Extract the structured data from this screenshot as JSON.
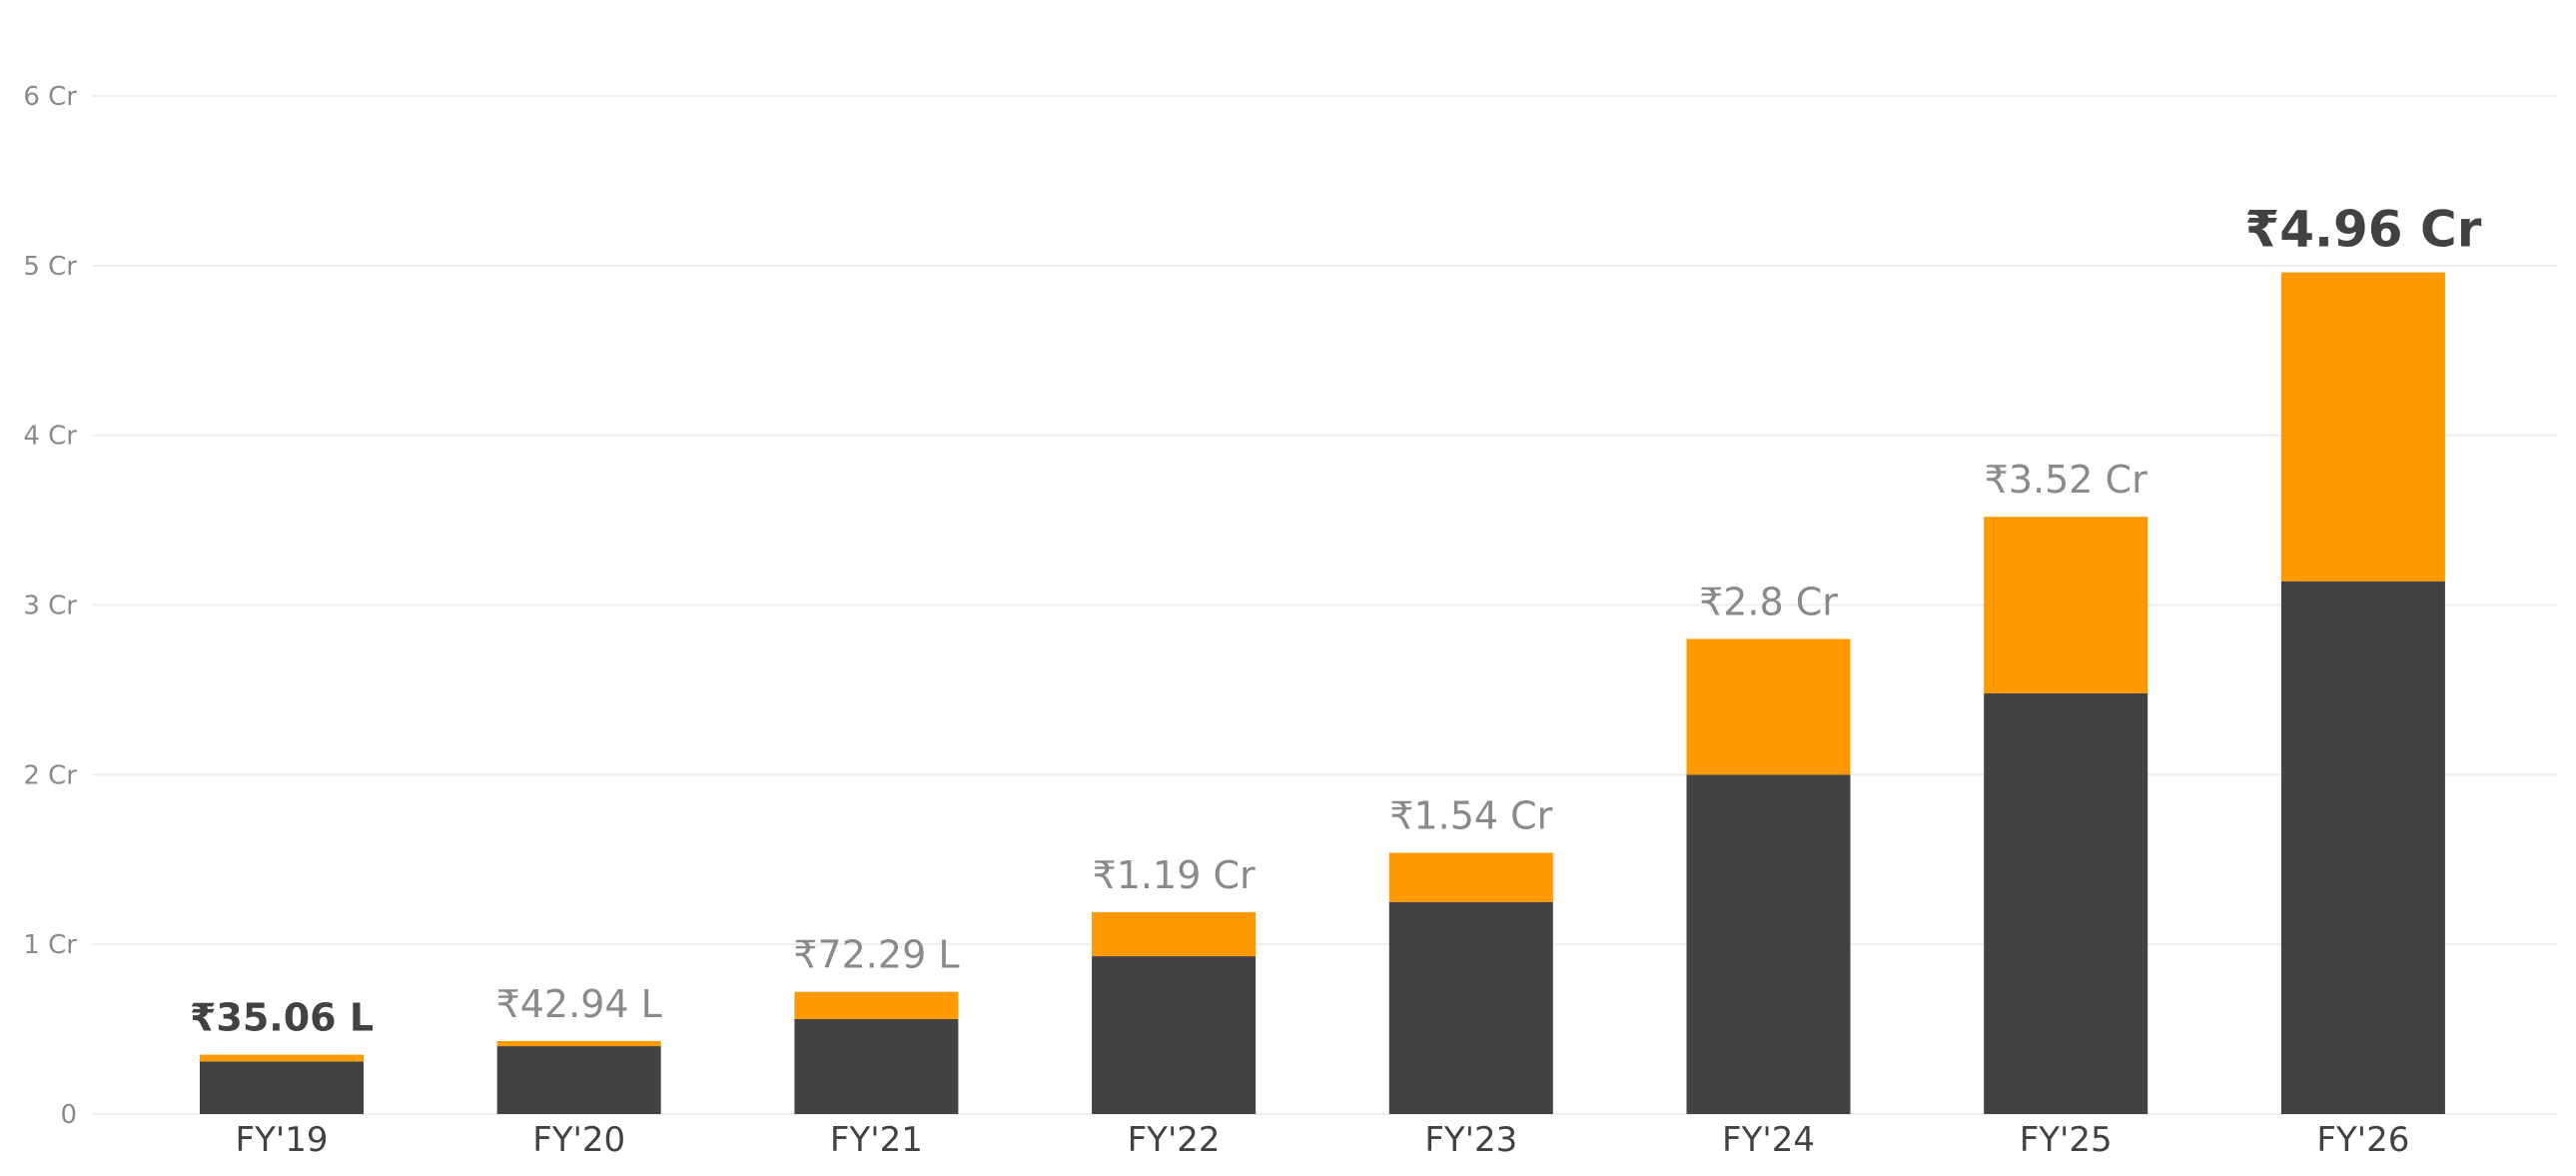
{
  "chart_data": {
    "type": "bar",
    "stacked": true,
    "categories": [
      "FY'19",
      "FY'20",
      "FY'21",
      "FY'22",
      "FY'23",
      "FY'24",
      "FY'25",
      "FY'26"
    ],
    "series": [
      {
        "values": [
          0.31,
          0.4,
          0.56,
          0.93,
          1.25,
          2.0,
          2.48,
          3.14
        ],
        "color": "#424242"
      },
      {
        "values": [
          0.04,
          0.03,
          0.16,
          0.26,
          0.29,
          0.8,
          1.04,
          1.82
        ],
        "color": "#FF9900"
      }
    ],
    "totals": [
      0.3506,
      0.4294,
      0.7229,
      1.19,
      1.54,
      2.8,
      3.52,
      4.96
    ],
    "total_labels": [
      "₹35.06 L",
      "₹42.94 L",
      "₹72.29 L",
      "₹1.19 Cr",
      "₹1.54 Cr",
      "₹2.8 Cr",
      "₹3.52 Cr",
      "₹4.96 Cr"
    ],
    "highlighted": [
      "FY'19",
      "FY'26"
    ],
    "ylim": [
      0,
      6
    ],
    "yticks": [
      0,
      1,
      2,
      3,
      4,
      5,
      6
    ],
    "ytick_labels": [
      "0",
      "1 Cr",
      "2 Cr",
      "3 Cr",
      "4 Cr",
      "5 Cr",
      "6 Cr"
    ],
    "title": "",
    "xlabel": "",
    "ylabel": "",
    "grid": true,
    "legend": "none",
    "colors": {
      "label_muted": "#8a8a8a",
      "label_strong": "#424242",
      "grid": "#eeeeee"
    }
  }
}
